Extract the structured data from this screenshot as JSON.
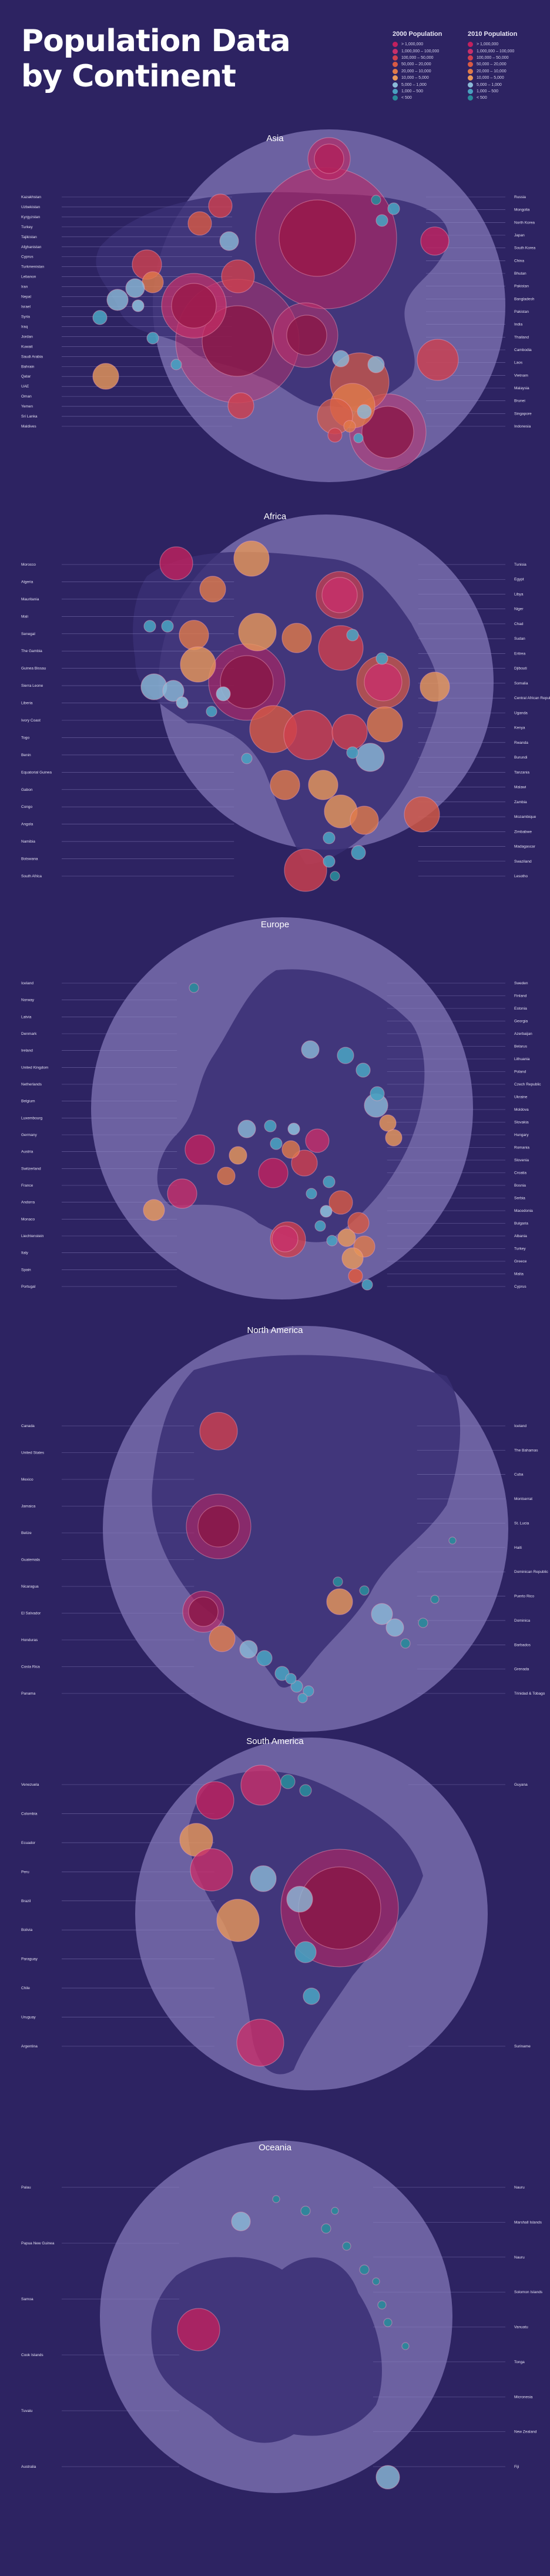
{
  "title": [
    "Population Data",
    "by Continent"
  ],
  "legend": {
    "y2000": {
      "title": "2000 Population",
      "items": [
        {
          "label": "> 1,000,000",
          "color": "#c2205e"
        },
        {
          "label": "1,000,000 – 100,000",
          "color": "#c8306a"
        },
        {
          "label": "100,000 – 50,000",
          "color": "#d0404e"
        },
        {
          "label": "50,000 – 20,000",
          "color": "#d85a44"
        },
        {
          "label": "20,000 – 10,000",
          "color": "#e07a4a"
        },
        {
          "label": "10,000 – 5,000",
          "color": "#e8985a"
        },
        {
          "label": "5,000 – 1,000",
          "color": "#8bbad8"
        },
        {
          "label": "1,000 – 500",
          "color": "#4aa0c0"
        },
        {
          "label": "< 500",
          "color": "#2a8a9a"
        }
      ]
    },
    "y2010": {
      "title": "2010 Population",
      "items": [
        {
          "label": "> 1,000,000",
          "color": "#c2205e"
        },
        {
          "label": "1,000,000 – 100,000",
          "color": "#c8306a"
        },
        {
          "label": "100,000 – 50,000",
          "color": "#d0404e"
        },
        {
          "label": "50,000 – 20,000",
          "color": "#d85a44"
        },
        {
          "label": "20,000 – 10,000",
          "color": "#e07a4a"
        },
        {
          "label": "10,000 – 5,000",
          "color": "#e8985a"
        },
        {
          "label": "5,000 – 1,000",
          "color": "#8bbad8"
        },
        {
          "label": "1,000 – 500",
          "color": "#4aa0c0"
        },
        {
          "label": "< 500",
          "color": "#2a8a9a"
        }
      ]
    }
  },
  "colors": {
    "background": "#2d2362",
    "globe": "#7d73b4",
    "land": "#3a2f74",
    "leader": "#8f87c4"
  },
  "chart_data": [
    {
      "type": "scatter",
      "title": "Asia",
      "labels_left": [
        "Kazakhstan",
        "Uzbekistan",
        "Kyrgyzstan",
        "Turkey",
        "Tajikistan",
        "Afghanistan",
        "Cyprus",
        "Turkmenistan",
        "Lebanon",
        "Iran",
        "Nepal",
        "Israel",
        "Syria",
        "Iraq",
        "Jordan",
        "Kuwait",
        "Saudi Arabia",
        "Bahrain",
        "Qatar",
        "UAE",
        "Oman",
        "Yemen",
        "Sri Lanka",
        "Maldives"
      ],
      "labels_right": [
        "Russia",
        "Mongolia",
        "North Korea",
        "Japan",
        "South Korea",
        "China",
        "Bhutan",
        "Pakistan",
        "Bangladesh",
        "Pakistan",
        "India",
        "Thailand",
        "Cambodia",
        "Laos",
        "Vietnam",
        "Malaysia",
        "Brunei",
        "Singapore",
        "Indonesia"
      ]
    },
    {
      "type": "scatter",
      "title": "Africa",
      "labels_left": [
        "Morocco",
        "Algeria",
        "Mauritania",
        "Mali",
        "Senegal",
        "The Gambia",
        "Guinea Bissau",
        "Sierra Leone",
        "Liberia",
        "Ivory Coast",
        "Togo",
        "Benin",
        "Equatorial Guinea",
        "Gabon",
        "Congo",
        "Angola",
        "Namibia",
        "Botswana",
        "South Africa"
      ],
      "labels_right": [
        "Tunisia",
        "Egypt",
        "Libya",
        "Niger",
        "Chad",
        "Sudan",
        "Eritrea",
        "Djibouti",
        "Somalia",
        "Central African Republic",
        "Uganda",
        "Kenya",
        "Rwanda",
        "Burundi",
        "Tanzania",
        "Malawi",
        "Zambia",
        "Mozambique",
        "Zimbabwe",
        "Madagascar",
        "Swaziland",
        "Lesotho"
      ]
    },
    {
      "type": "scatter",
      "title": "Europe",
      "labels_left": [
        "Iceland",
        "Norway",
        "Latvia",
        "Denmark",
        "Ireland",
        "United Kingdom",
        "Netherlands",
        "Belgium",
        "Luxembourg",
        "Germany",
        "Austria",
        "Switzerland",
        "France",
        "Andorra",
        "Monaco",
        "Liechtenstein",
        "Italy",
        "Spain",
        "Portugal"
      ],
      "labels_right": [
        "Sweden",
        "Finland",
        "Estonia",
        "Georgia",
        "Azerbaijan",
        "Belarus",
        "Lithuania",
        "Poland",
        "Czech Republic",
        "Ukraine",
        "Moldova",
        "Slovakia",
        "Hungary",
        "Romania",
        "Slovenia",
        "Croatia",
        "Bosnia",
        "Serbia",
        "Macedonia",
        "Bulgaria",
        "Albania",
        "Turkey",
        "Greece",
        "Malta",
        "Cyprus"
      ]
    },
    {
      "type": "scatter",
      "title": "North America",
      "labels_left": [
        "Canada",
        "United States",
        "Mexico",
        "Jamaica",
        "Belize",
        "Guatemala",
        "Nicaragua",
        "El Salvador",
        "Honduras",
        "Costa Rica",
        "Panama"
      ],
      "labels_right": [
        "Iceland",
        "The Bahamas",
        "Cuba",
        "Montserrat",
        "St. Lucia",
        "Haiti",
        "Dominican Republic",
        "Puerto Rico",
        "Dominica",
        "Barbados",
        "Grenada",
        "Trinidad & Tobago"
      ]
    },
    {
      "type": "scatter",
      "title": "South America",
      "labels_left": [
        "Venezuela",
        "Colombia",
        "Ecuador",
        "Peru",
        "Brazil",
        "Bolivia",
        "Paraguay",
        "Chile",
        "Uruguay",
        "Argentina"
      ],
      "labels_right": [
        "Guyana",
        "Suriname"
      ]
    },
    {
      "type": "scatter",
      "title": "Oceania",
      "labels_left": [
        "Palau",
        "Papua New Guinea",
        "Samoa",
        "Cook Islands",
        "Tuvalu",
        "Australia"
      ],
      "labels_right": [
        "Nauru",
        "Marshall Islands",
        "Nauru",
        "Solomon Islands",
        "Vanuatu",
        "Tonga",
        "Micronesia",
        "New Zealand",
        "Fiji"
      ]
    }
  ]
}
